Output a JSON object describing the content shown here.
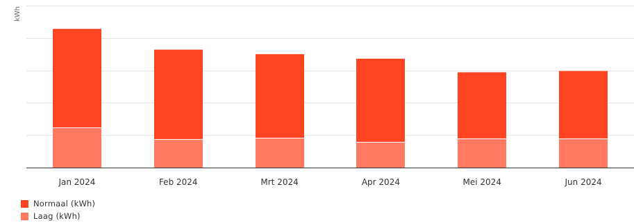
{
  "chart_data": {
    "type": "bar",
    "stacked": true,
    "ylabel": "kWh",
    "categories": [
      "Jan 2024",
      "Feb 2024",
      "Mrt 2024",
      "Apr 2024",
      "Mei 2024",
      "Jun 2024"
    ],
    "series": [
      {
        "name": "Laag (kWh)",
        "color": "#ff7a61",
        "values": [
          62,
          44,
          46,
          40,
          45,
          45
        ]
      },
      {
        "name": "Normaal (kWh)",
        "color": "#ff4422",
        "values": [
          152,
          138,
          129,
          128,
          102,
          104
        ]
      }
    ],
    "ylim": [
      0,
      250
    ],
    "grid": true,
    "legend_position": "bottom-left"
  }
}
